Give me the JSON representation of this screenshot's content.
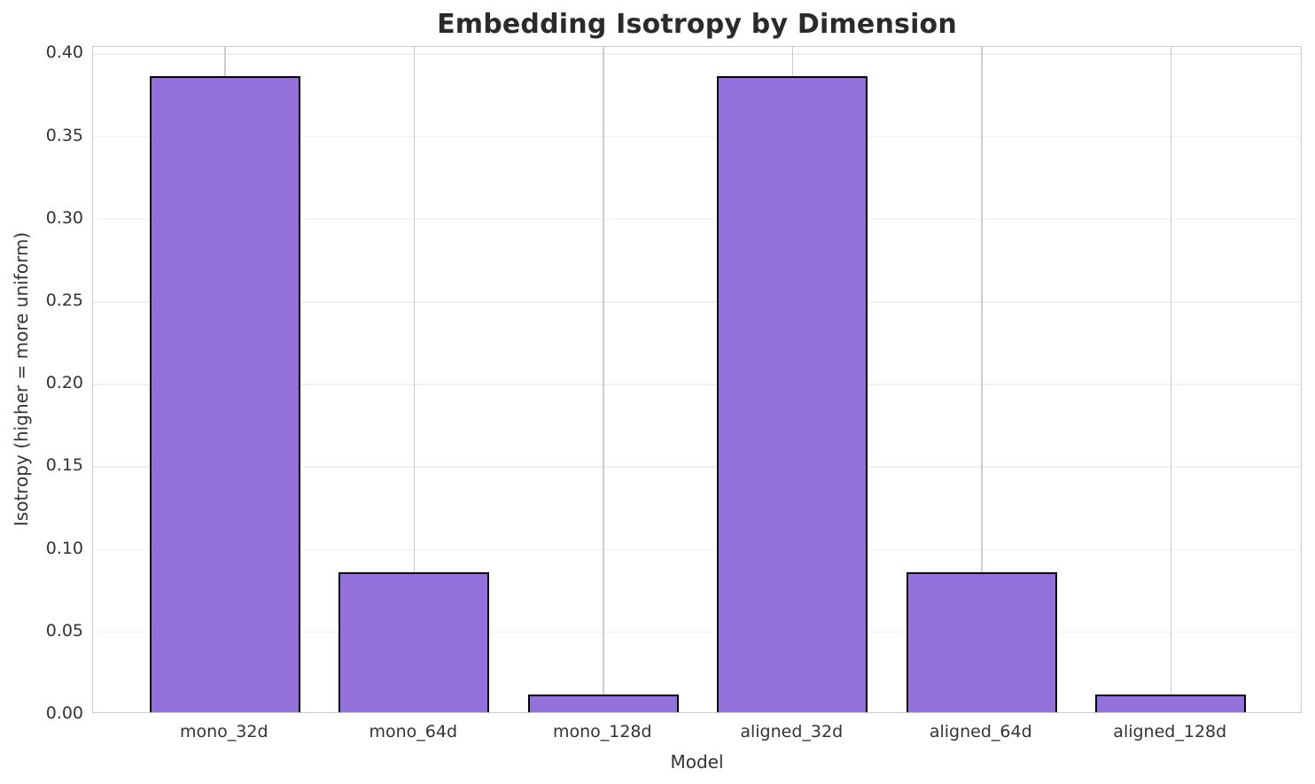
{
  "chart_data": {
    "type": "bar",
    "title": "Embedding Isotropy by Dimension",
    "xlabel": "Model",
    "ylabel": "Isotropy (higher = more uniform)",
    "categories": [
      "mono_32d",
      "mono_64d",
      "mono_128d",
      "aligned_32d",
      "aligned_64d",
      "aligned_128d"
    ],
    "values": [
      0.385,
      0.085,
      0.011,
      0.385,
      0.085,
      0.011
    ],
    "ylim": [
      0,
      0.404
    ],
    "yticks": [
      0.0,
      0.05,
      0.1,
      0.15,
      0.2,
      0.25,
      0.3,
      0.35,
      0.4
    ],
    "ytick_labels": [
      "0.00",
      "0.05",
      "0.10",
      "0.15",
      "0.20",
      "0.25",
      "0.30",
      "0.35",
      "0.40"
    ],
    "grid": true,
    "legend": "none",
    "colors": {
      "bar_fill": "#9370DB",
      "bar_edge": "#000000",
      "grid_horizontal": "#f0f0f0",
      "grid_vertical": "#cccccc",
      "spine": "#cccccc",
      "title_text": "#2b2b2b",
      "tick_text": "#333333",
      "background": "#ffffff"
    }
  }
}
